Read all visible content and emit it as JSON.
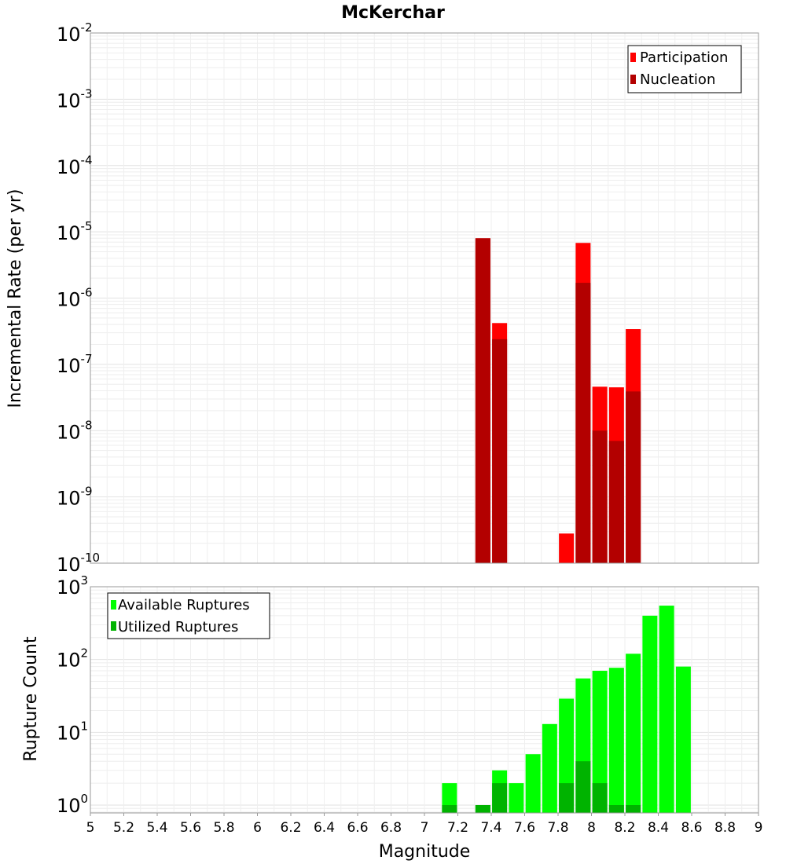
{
  "title": "McKerchar",
  "colors": {
    "participation": "#ff0000",
    "nucleation": "#b30000",
    "available": "#00ff00",
    "utilized": "#00b300"
  },
  "chart_data": [
    {
      "type": "bar",
      "ylabel": "Incremental Rate (per yr)",
      "yscale": "log",
      "ylim": [
        1e-10,
        0.01
      ],
      "xlim": [
        5,
        9
      ],
      "grid": true,
      "legend_position": "top-right",
      "ytick_exponents": [
        "-2",
        "-3",
        "-4",
        "-5",
        "-6",
        "-7",
        "-8",
        "-9",
        "-10"
      ],
      "series": [
        {
          "name": "Participation",
          "x": [
            7.35,
            7.45,
            7.85,
            7.95,
            8.05,
            8.15,
            8.25
          ],
          "values": [
            8e-06,
            4.2e-07,
            2.8e-10,
            6.8e-06,
            4.6e-08,
            4.5e-08,
            3.4e-07
          ]
        },
        {
          "name": "Nucleation",
          "x": [
            7.35,
            7.45,
            7.95,
            8.05,
            8.15,
            8.25
          ],
          "values": [
            8e-06,
            2.4e-07,
            1.7e-06,
            1e-08,
            7e-09,
            3.9e-08
          ]
        }
      ]
    },
    {
      "type": "bar",
      "ylabel": "Rupture Count",
      "xlabel": "Magnitude",
      "yscale": "log",
      "ylim": [
        0.78,
        1000
      ],
      "xlim": [
        5,
        9
      ],
      "grid": true,
      "legend_position": "top-left",
      "ytick_exponents": [
        "3",
        "2",
        "1",
        "0"
      ],
      "xticks": [
        "5",
        "5.2",
        "5.4",
        "5.6",
        "5.8",
        "6",
        "6.2",
        "6.4",
        "6.6",
        "6.8",
        "7",
        "7.2",
        "7.4",
        "7.6",
        "7.8",
        "8",
        "8.2",
        "8.4",
        "8.6",
        "8.8",
        "9"
      ],
      "series": [
        {
          "name": "Available Ruptures",
          "x": [
            7.15,
            7.35,
            7.45,
            7.55,
            7.65,
            7.75,
            7.85,
            7.95,
            8.05,
            8.15,
            8.25,
            8.35,
            8.45,
            8.55
          ],
          "values": [
            2,
            1,
            3,
            2,
            5,
            13,
            29,
            55,
            70,
            77,
            120,
            400,
            550,
            80
          ]
        },
        {
          "name": "Utilized Ruptures",
          "x": [
            7.15,
            7.35,
            7.45,
            7.85,
            7.95,
            8.05,
            8.15,
            8.25
          ],
          "values": [
            1,
            1,
            2,
            2,
            4,
            2,
            1,
            1
          ]
        }
      ]
    }
  ]
}
